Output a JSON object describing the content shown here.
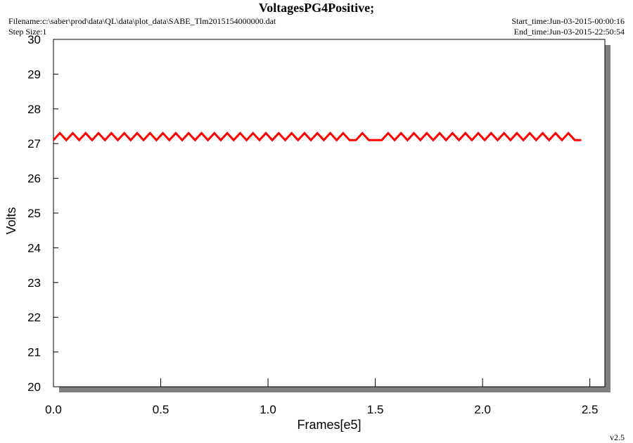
{
  "chart_data": {
    "type": "line",
    "title": "VoltagesPG4Positive;",
    "filename": "Filename:c:\\saber\\prod\\data\\QL\\data\\plot_data\\SABE_Tlm2015154000000.dat",
    "step_size": "Step Size:1",
    "start_time": "Start_time:Jun-03-2015-00:00:16",
    "end_time": "End_time:Jun-03-2015-22:50:54",
    "xlabel": "Frames[e5]",
    "ylabel": "Volts",
    "version": "v2.5",
    "x": [
      0,
      0.03,
      0.06,
      0.09,
      0.12,
      0.15,
      0.18,
      0.21,
      0.24,
      0.27,
      0.3,
      0.33,
      0.36,
      0.39,
      0.42,
      0.45,
      0.48,
      0.51,
      0.54,
      0.57,
      0.6,
      0.63,
      0.66,
      0.69,
      0.72,
      0.75,
      0.78,
      0.81,
      0.84,
      0.87,
      0.9,
      0.93,
      0.96,
      0.99,
      1.02,
      1.05,
      1.08,
      1.11,
      1.14,
      1.17,
      1.2,
      1.23,
      1.26,
      1.29,
      1.32,
      1.35,
      1.38,
      1.41,
      1.44,
      1.47,
      1.5,
      1.53,
      1.56,
      1.59,
      1.62,
      1.65,
      1.68,
      1.71,
      1.74,
      1.77,
      1.8,
      1.83,
      1.86,
      1.89,
      1.92,
      1.95,
      1.98,
      2.01,
      2.04,
      2.07,
      2.1,
      2.13,
      2.16,
      2.19,
      2.22,
      2.25,
      2.28,
      2.31,
      2.34,
      2.37,
      2.4,
      2.43,
      2.46
    ],
    "series": [
      {
        "name": "VoltagesPG4Positive",
        "color": "#ff0000",
        "values": [
          27.1,
          27.3,
          27.1,
          27.3,
          27.1,
          27.3,
          27.1,
          27.3,
          27.1,
          27.3,
          27.1,
          27.3,
          27.1,
          27.3,
          27.1,
          27.3,
          27.1,
          27.3,
          27.1,
          27.3,
          27.1,
          27.3,
          27.1,
          27.3,
          27.1,
          27.3,
          27.1,
          27.3,
          27.1,
          27.3,
          27.1,
          27.3,
          27.1,
          27.3,
          27.1,
          27.3,
          27.1,
          27.3,
          27.1,
          27.3,
          27.1,
          27.3,
          27.1,
          27.3,
          27.1,
          27.3,
          27.1,
          27.1,
          27.3,
          27.1,
          27.1,
          27.1,
          27.3,
          27.1,
          27.3,
          27.1,
          27.3,
          27.1,
          27.3,
          27.1,
          27.3,
          27.1,
          27.3,
          27.1,
          27.3,
          27.1,
          27.3,
          27.1,
          27.3,
          27.1,
          27.3,
          27.1,
          27.3,
          27.1,
          27.3,
          27.1,
          27.3,
          27.1,
          27.3,
          27.1,
          27.3,
          27.1,
          27.1
        ]
      }
    ],
    "xlim": [
      0,
      2.57
    ],
    "ylim": [
      20,
      30
    ],
    "xticks": [
      {
        "value": 0,
        "label": "0.0"
      },
      0.5,
      {
        "value": 1,
        "label": "1.0"
      },
      1.5,
      {
        "value": 2,
        "label": "2.0"
      },
      2.5
    ],
    "yticks": [
      20,
      21,
      22,
      23,
      24,
      25,
      26,
      27,
      28,
      29,
      30
    ],
    "grid": false
  }
}
